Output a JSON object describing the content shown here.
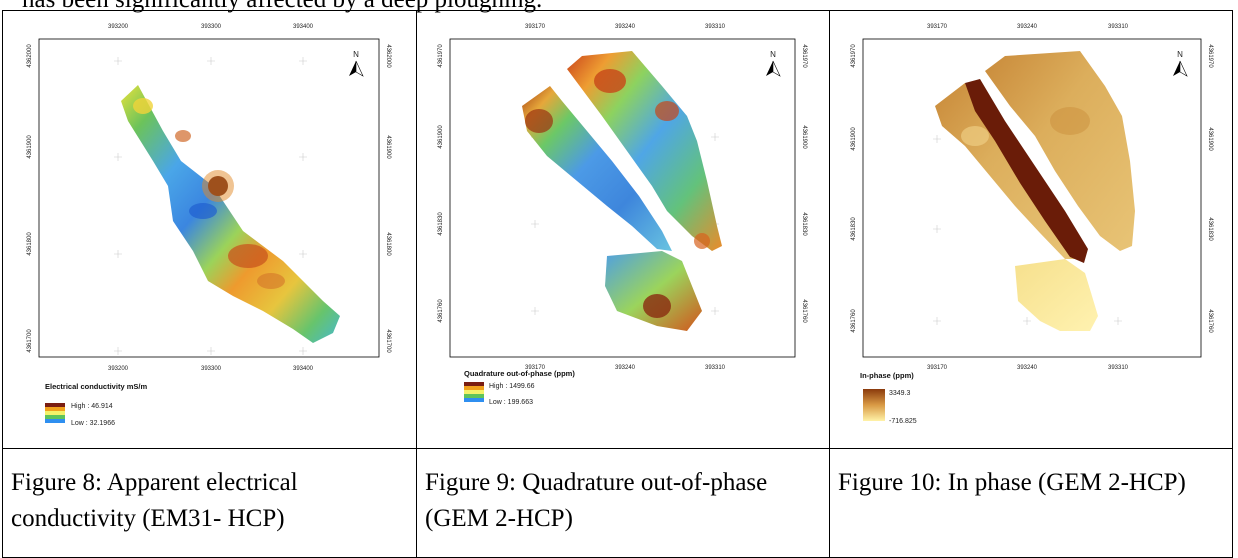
{
  "top_text": "has been significantly affected by a deep ploughing.",
  "panels": [
    {
      "x_ticks": [
        "393200",
        "393300",
        "393400"
      ],
      "y_ticks": [
        "4362000",
        "4361900",
        "4361800",
        "4361700"
      ],
      "north": "N",
      "legend_title": "Electrical conductivity mS/m",
      "legend_high": "High : 46.914",
      "legend_low": "Low : 32.1966",
      "legend_colors": [
        "#7a1d12",
        "#f0a11c",
        "#f3f26a",
        "#5fc45b",
        "#2f8ff0"
      ],
      "caption": "Figure 8: Apparent electrical conductivity (EM31- HCP)"
    },
    {
      "x_ticks": [
        "393170",
        "393240",
        "393310"
      ],
      "y_ticks": [
        "4361970",
        "4361900",
        "4361830",
        "4361760"
      ],
      "north": "N",
      "legend_title": "Quadrature out-of-phase (ppm)",
      "legend_high": "High : 1499.66",
      "legend_low": "Low : 199.663",
      "legend_colors": [
        "#7a1d12",
        "#f0a11c",
        "#f3f26a",
        "#5fc45b",
        "#2f8ff0"
      ],
      "caption": "Figure 9: Quadrature out-of-phase (GEM 2-HCP)"
    },
    {
      "x_ticks": [
        "393170",
        "393240",
        "393310"
      ],
      "y_ticks": [
        "4361970",
        "4361900",
        "4361830",
        "4361760"
      ],
      "north": "N",
      "legend_title": "In-phase (ppm)",
      "legend_high": "3349.3",
      "legend_low": "-716.825",
      "legend_colors": [
        "#8a3a0c",
        "#d99a45",
        "#fff2a8"
      ],
      "caption": "Figure 10: In phase (GEM 2-HCP)"
    }
  ]
}
